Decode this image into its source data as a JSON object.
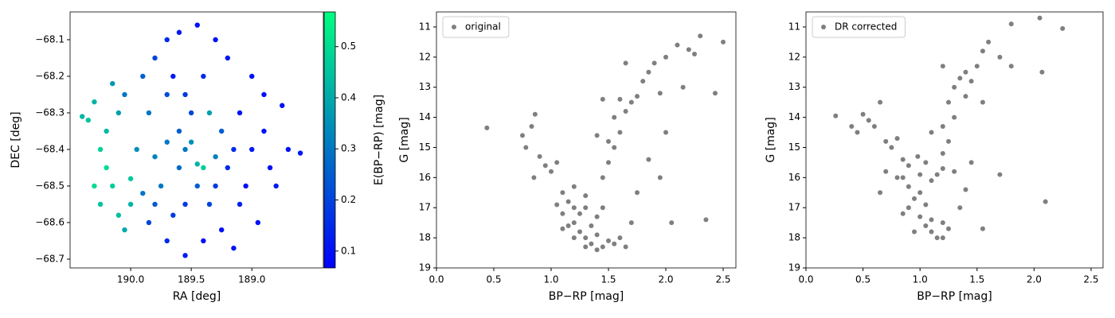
{
  "chart_data": [
    {
      "type": "scatter",
      "x_label": "RA [deg]",
      "y_label": "DEC [deg]",
      "xlim": [
        190.5,
        188.41
      ],
      "ylim": [
        -68.724,
        -68.024
      ],
      "xticks": [
        {
          "value": 190,
          "label": "190.0"
        },
        189.5,
        {
          "value": 189,
          "label": "189.0"
        }
      ],
      "yticks": [
        {
          "value": -68.1,
          "label": "−68.1"
        },
        {
          "value": -68.2,
          "label": "−68.2"
        },
        {
          "value": -68.3,
          "label": "−68.3"
        },
        {
          "value": -68.4,
          "label": "−68.4"
        },
        {
          "value": -68.5,
          "label": "−68.5"
        },
        {
          "value": -68.6,
          "label": "−68.6"
        },
        {
          "value": -68.7,
          "label": "−68.7"
        }
      ],
      "colorbar": {
        "label": "E(BP−RP) [mag]",
        "lim": [
          0.067,
          0.568
        ],
        "ticks": [
          0.1,
          0.2,
          0.3,
          0.4,
          0.5
        ],
        "colors": [
          "#0000ff",
          "#00ff80"
        ]
      },
      "x": [
        190.35,
        190.3,
        190.25,
        190.2,
        190.15,
        190.1,
        190.05,
        190.2,
        190.1,
        190.0,
        190.0,
        189.95,
        190.15,
        190.25,
        190.05,
        189.5,
        189.45,
        189.4,
        189.55,
        189.6,
        189.35,
        189.5,
        189.6,
        189.45,
        189.3,
        189.7,
        189.55,
        189.4,
        189.65,
        189.75,
        189.7,
        189.35,
        189.55,
        189.8,
        189.25,
        189.1,
        189.0,
        188.9,
        188.7,
        188.6,
        188.75,
        188.8,
        189.0,
        189.1,
        188.95,
        189.2,
        189.3,
        189.45,
        189.6,
        189.7,
        189.8,
        189.9,
        189.85,
        189.7,
        189.55,
        189.4,
        189.25,
        189.15,
        189.05,
        188.85,
        188.9,
        189.2,
        189.3,
        189.15,
        189.85,
        189.9,
        189.8,
        189.65,
        190.3,
        190.4
      ],
      "y": [
        -68.32,
        -68.27,
        -68.4,
        -68.45,
        -68.5,
        -68.58,
        -68.62,
        -68.35,
        -68.3,
        -68.48,
        -68.55,
        -68.4,
        -68.22,
        -68.55,
        -68.25,
        -68.38,
        -68.44,
        -68.45,
        -68.4,
        -68.35,
        -68.3,
        -68.3,
        -68.45,
        -68.5,
        -68.42,
        -68.38,
        -68.25,
        -68.2,
        -68.2,
        -68.5,
        -68.25,
        -68.55,
        -68.55,
        -68.42,
        -68.35,
        -68.3,
        -68.4,
        -68.35,
        -68.4,
        -68.41,
        -68.28,
        -68.5,
        -68.2,
        -68.55,
        -68.6,
        -68.15,
        -68.1,
        -68.06,
        -68.08,
        -68.1,
        -68.15,
        -68.2,
        -68.6,
        -68.65,
        -68.69,
        -68.65,
        -68.62,
        -68.67,
        -68.5,
        -68.45,
        -68.25,
        -68.45,
        -68.5,
        -68.4,
        -68.3,
        -68.52,
        -68.55,
        -68.58,
        -68.5,
        -68.31
      ],
      "c": [
        0.45,
        0.42,
        0.48,
        0.5,
        0.47,
        0.44,
        0.4,
        0.43,
        0.38,
        0.46,
        0.42,
        0.35,
        0.36,
        0.45,
        0.3,
        0.35,
        0.42,
        0.47,
        0.3,
        0.25,
        0.38,
        0.2,
        0.28,
        0.25,
        0.32,
        0.3,
        0.18,
        0.15,
        0.12,
        0.3,
        0.22,
        0.2,
        0.18,
        0.33,
        0.25,
        0.1,
        0.12,
        0.1,
        0.1,
        0.11,
        0.1,
        0.12,
        0.1,
        0.13,
        0.1,
        0.11,
        0.1,
        0.1,
        0.12,
        0.15,
        0.2,
        0.25,
        0.2,
        0.15,
        0.12,
        0.1,
        0.1,
        0.1,
        0.1,
        0.1,
        0.1,
        0.15,
        0.18,
        0.15,
        0.3,
        0.3,
        0.25,
        0.18,
        0.5,
        0.42
      ]
    },
    {
      "type": "scatter",
      "x_label": "BP−RP [mag]",
      "y_label": "G [mag]",
      "legend": "upper left",
      "xlim": [
        0,
        2.611
      ],
      "ylim": [
        19,
        10.5
      ],
      "xticks": [
        {
          "value": 0,
          "label": "0.0"
        },
        0.5,
        {
          "value": 1,
          "label": "1.0"
        },
        1.5,
        {
          "value": 2,
          "label": "2.0"
        },
        2.5
      ],
      "yticks": [
        11,
        12,
        13,
        14,
        15,
        16,
        17,
        18,
        19
      ],
      "series": [
        {
          "name": "original",
          "color": "#000000",
          "alpha": 0.5,
          "x": [
            0.44,
            0.75,
            0.78,
            0.83,
            0.86,
            0.9,
            0.95,
            0.85,
            1.0,
            1.05,
            1.1,
            1.15,
            1.2,
            1.1,
            1.2,
            1.25,
            1.3,
            1.35,
            1.4,
            1.3,
            1.45,
            1.2,
            1.3,
            1.25,
            1.35,
            1.4,
            1.5,
            1.55,
            1.15,
            1.2,
            1.05,
            1.1,
            1.3,
            1.4,
            1.45,
            1.6,
            1.65,
            1.7,
            1.45,
            1.5,
            1.55,
            1.5,
            1.6,
            1.55,
            1.65,
            1.7,
            1.75,
            1.8,
            1.6,
            1.85,
            1.9,
            2.0,
            2.1,
            2.2,
            2.25,
            2.3,
            2.5,
            2.43,
            2.15,
            1.95,
            2.35,
            2.05,
            1.85,
            2.0,
            1.75,
            1.95,
            1.65,
            1.4,
            1.45
          ],
          "y": [
            14.35,
            14.6,
            15.0,
            14.3,
            13.9,
            15.3,
            15.6,
            16.0,
            15.8,
            15.5,
            16.5,
            16.8,
            17.0,
            17.2,
            17.5,
            17.8,
            18.0,
            18.2,
            18.4,
            18.3,
            18.3,
            16.3,
            16.6,
            17.2,
            17.6,
            17.9,
            18.1,
            18.2,
            17.6,
            18.0,
            16.9,
            17.7,
            17.0,
            17.3,
            17.0,
            18.0,
            18.3,
            17.5,
            16.0,
            15.5,
            15.0,
            14.8,
            14.5,
            14.0,
            13.8,
            13.5,
            13.3,
            12.8,
            13.4,
            12.5,
            12.2,
            12.0,
            11.6,
            11.75,
            11.9,
            11.3,
            11.5,
            13.2,
            13.0,
            13.2,
            17.4,
            17.5,
            15.4,
            14.5,
            16.5,
            16.0,
            12.2,
            14.6,
            13.4
          ]
        }
      ]
    },
    {
      "type": "scatter",
      "x_label": "BP−RP [mag]",
      "y_label": "G [mag]",
      "legend": "upper left",
      "xlim": [
        0,
        2.605
      ],
      "ylim": [
        19,
        10.5
      ],
      "xticks": [
        {
          "value": 0,
          "label": "0.0"
        },
        0.5,
        {
          "value": 1,
          "label": "1.0"
        },
        1.5,
        {
          "value": 2,
          "label": "2.0"
        },
        2.5
      ],
      "yticks": [
        11,
        12,
        13,
        14,
        15,
        16,
        17,
        18,
        19
      ],
      "series": [
        {
          "name": "DR corrected",
          "color": "#000000",
          "alpha": 0.5,
          "x": [
            0.26,
            0.4,
            0.45,
            0.5,
            0.55,
            0.6,
            0.65,
            0.7,
            0.75,
            0.8,
            0.85,
            0.7,
            0.65,
            0.8,
            0.85,
            0.9,
            0.95,
            0.9,
            1.0,
            1.05,
            1.1,
            1.15,
            1.2,
            1.0,
            1.05,
            1.1,
            0.95,
            1.2,
            1.25,
            0.85,
            1.0,
            1.1,
            1.2,
            1.3,
            1.15,
            0.98,
            1.05,
            0.9,
            1.2,
            1.25,
            1.2,
            1.3,
            1.25,
            1.3,
            1.35,
            1.4,
            1.45,
            1.5,
            1.55,
            1.6,
            1.8,
            2.05,
            2.25,
            1.8,
            2.07,
            1.7,
            1.4,
            1.55,
            1.2,
            1.1,
            1.45,
            1.55,
            2.1,
            1.7,
            1.4,
            1.35
          ],
          "y": [
            13.95,
            14.3,
            14.5,
            13.9,
            14.1,
            14.3,
            13.5,
            14.8,
            15.0,
            14.7,
            15.4,
            15.8,
            16.5,
            16.0,
            16.0,
            16.3,
            16.7,
            17.0,
            17.3,
            17.6,
            17.8,
            18.0,
            18.0,
            16.5,
            16.9,
            17.4,
            17.8,
            17.5,
            17.7,
            17.2,
            15.9,
            16.1,
            15.7,
            15.8,
            15.9,
            15.3,
            15.5,
            15.6,
            15.2,
            14.8,
            14.3,
            14.0,
            13.5,
            13.0,
            12.7,
            12.5,
            12.8,
            12.3,
            11.8,
            11.5,
            10.9,
            10.7,
            11.05,
            12.3,
            12.5,
            12.0,
            13.3,
            13.5,
            12.3,
            14.5,
            15.5,
            17.7,
            16.8,
            15.9,
            16.4,
            17.0
          ]
        }
      ]
    }
  ]
}
